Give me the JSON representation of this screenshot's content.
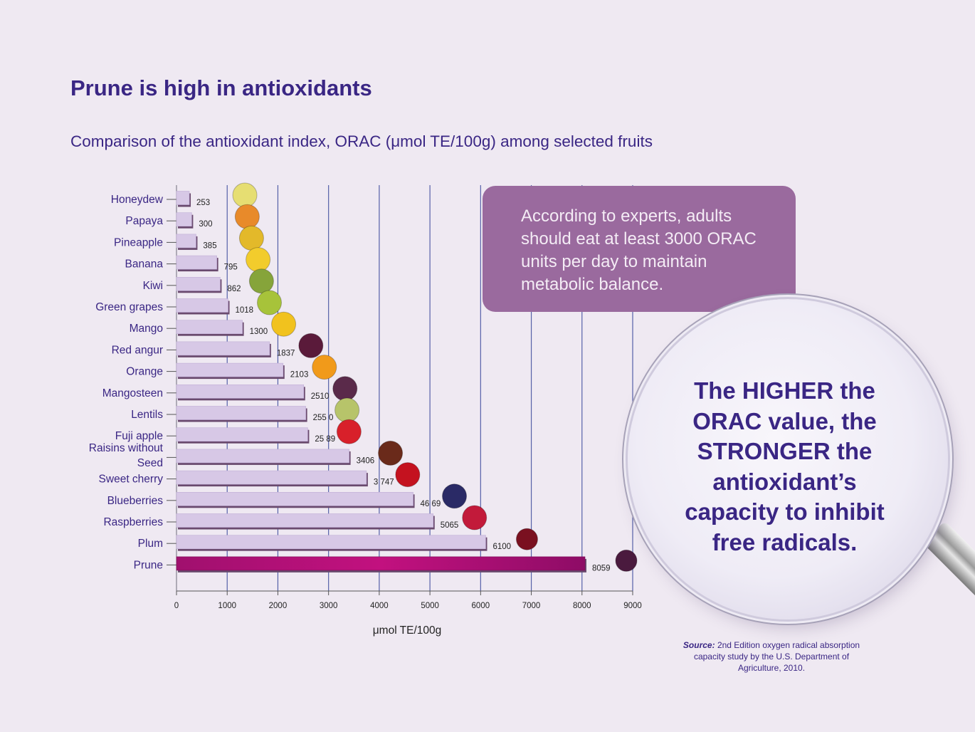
{
  "title": "Prune is high in antioxidants",
  "subtitle": "Comparison of the antioxidant index, ORAC (μmol TE/100g) among selected fruits",
  "callout": "According to experts, adults should eat at least 3000 ORAC units per day to maintain metabolic balance.",
  "lens_text": "The HIGHER the ORAC value, the STRONGER the antioxidant’s capacity to inhibit free radicals.",
  "source": {
    "label": "Source:",
    "text": "2nd Edition oxygen radical absorption capacity study by the U.S. Department of Agriculture, 2010."
  },
  "colors": {
    "title": "#3a2684",
    "bar": "#d7c8e6",
    "bar_shadow": "#6a4a6e",
    "highlight_bar": "#c2117f",
    "gridline": "#5560a8",
    "background": "#efe9f2",
    "callout_bg": "#9a6a9e"
  },
  "chart_data": {
    "type": "bar",
    "orientation": "horizontal",
    "categories": [
      "Honeydew",
      "Papaya",
      "Pineapple",
      "Banana",
      "Kiwi",
      "Green grapes",
      "Mango",
      "Red angur",
      "Orange",
      "Mangosteen",
      "Lentils",
      "Fuji apple",
      "Raisins without Seed",
      "Sweet cherry",
      "Blueberries",
      "Raspberries",
      "Plum",
      "Prune"
    ],
    "values": [
      253,
      300,
      385,
      795,
      862,
      1018,
      1300,
      1837,
      2103,
      2510,
      2550,
      2589,
      3406,
      3747,
      4669,
      5065,
      6100,
      8059
    ],
    "value_labels": [
      "253",
      "300",
      "385",
      "795",
      "862",
      "1018",
      "1300",
      "1837",
      "2103",
      "2510",
      "255 0",
      "25 89",
      "3406",
      "3 747",
      "46 69",
      "5065",
      "6100",
      "8059"
    ],
    "highlight": "Prune",
    "xlabel": "μmol TE/100g",
    "ylabel": "",
    "xlim": [
      0,
      9000
    ],
    "xticks": [
      0,
      1000,
      2000,
      3000,
      4000,
      5000,
      6000,
      7000,
      8000,
      9000
    ],
    "grid": "vertical",
    "fruit_icons": [
      "melon-icon",
      "papaya-icon",
      "pineapple-icon",
      "banana-icon",
      "kiwi-icon",
      "green-grapes-icon",
      "mango-icon",
      "red-grapes-icon",
      "orange-icon",
      "mangosteen-icon",
      "guava-icon",
      "apple-icon",
      "raisins-icon",
      "cherry-icon",
      "blueberry-icon",
      "raspberry-icon",
      "plum-icon",
      "prune-icon"
    ]
  }
}
